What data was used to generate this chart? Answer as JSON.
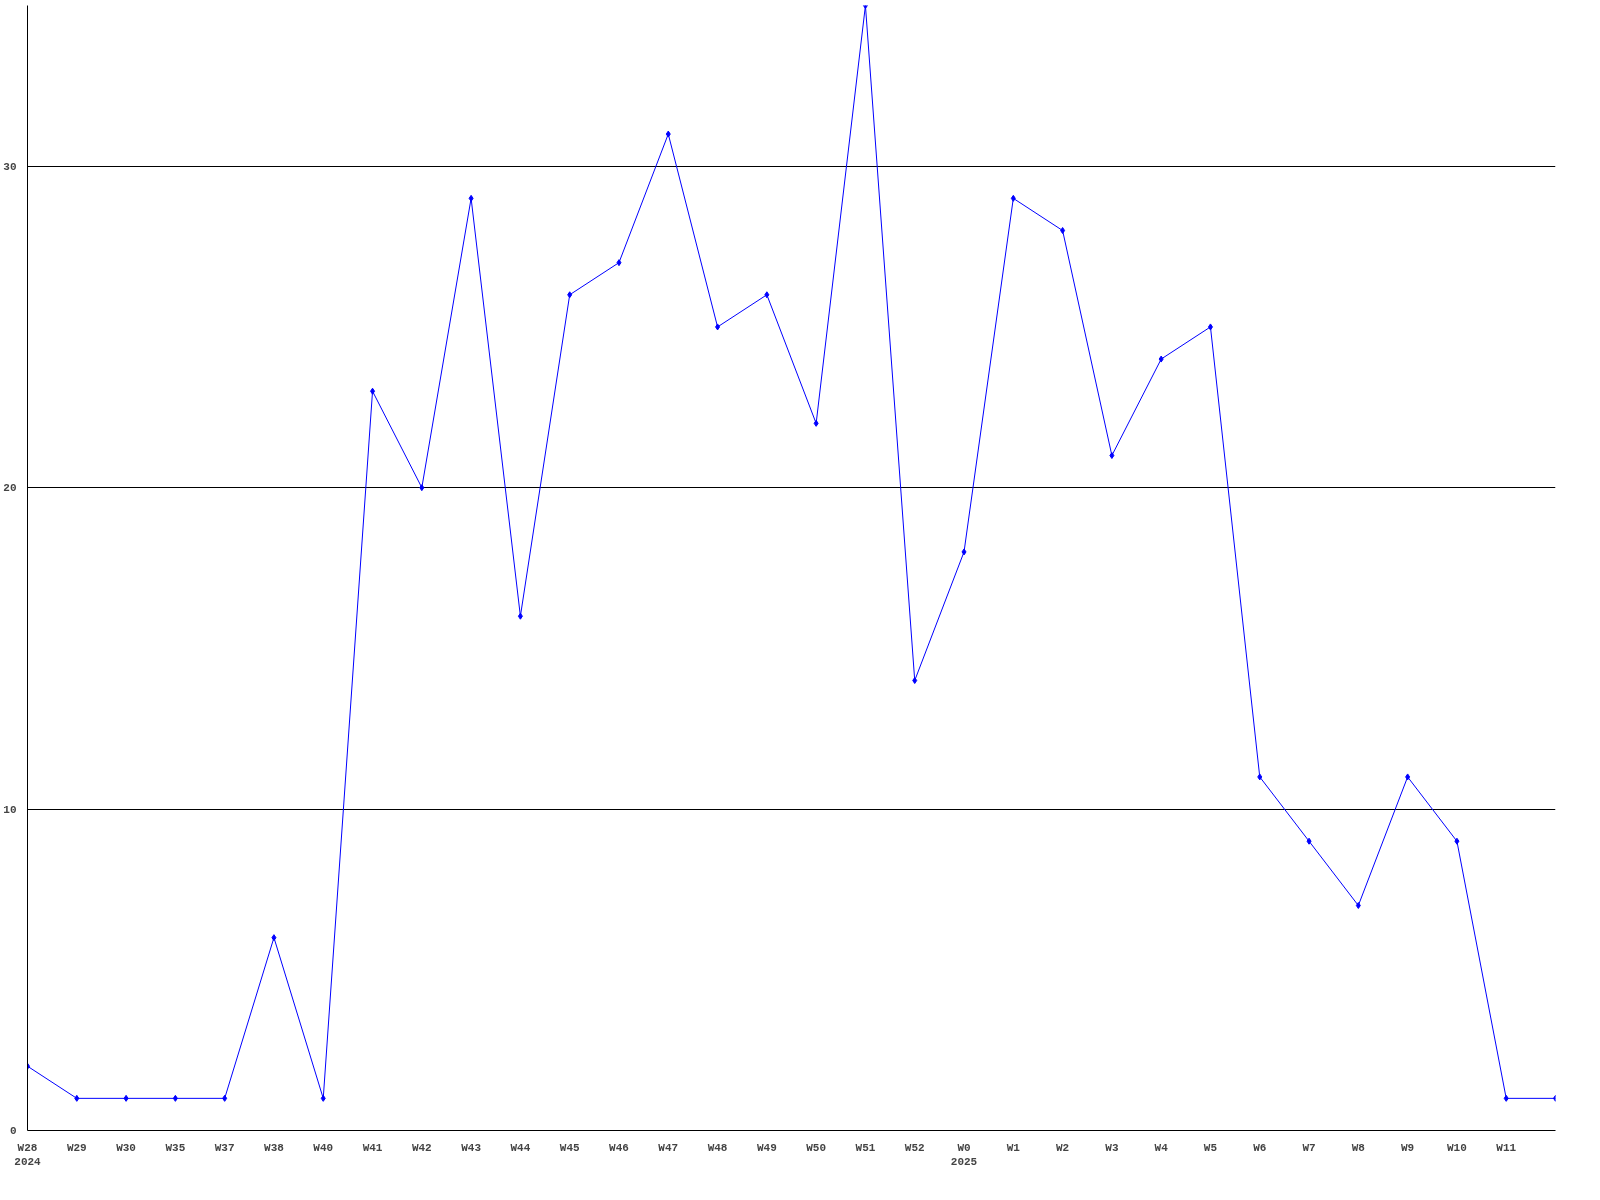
{
  "chart_data": {
    "type": "line",
    "categories": [
      "W28\n2024",
      "W29",
      "W30",
      "W35",
      "W37",
      "W38",
      "W40",
      "W41",
      "W42",
      "W43",
      "W44",
      "W45",
      "W46",
      "W47",
      "W48",
      "W49",
      "W50",
      "W51",
      "W52",
      "W0\n2025",
      "W1",
      "W2",
      "W3",
      "W4",
      "W5",
      "W6",
      "W7",
      "W8",
      "W9",
      "W10",
      "W11",
      null
    ],
    "series": [
      {
        "color": "#0000ff",
        "values": [
          2,
          1,
          1,
          1,
          1,
          6,
          1,
          23,
          20,
          29,
          16,
          26,
          27,
          31,
          25,
          26,
          22,
          35,
          14,
          18,
          29,
          28,
          21,
          24,
          25,
          11,
          9,
          7,
          11,
          9,
          1,
          1
        ]
      }
    ],
    "ylim": [
      0,
      35
    ],
    "yticks": [
      0,
      10,
      20,
      30
    ],
    "grid": "y",
    "marker": "diamond",
    "line_style": "solid"
  }
}
